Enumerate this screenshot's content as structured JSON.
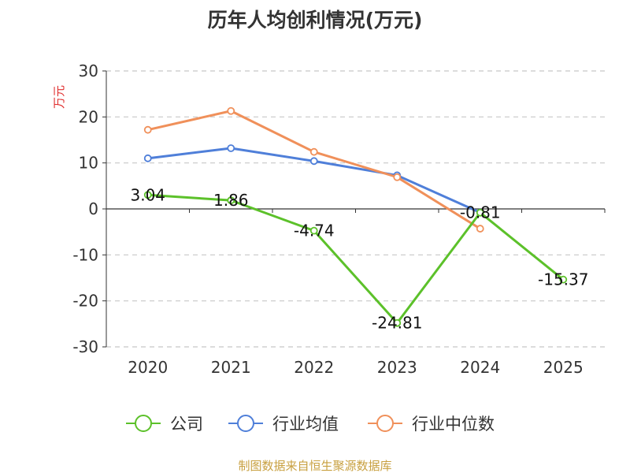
{
  "chart_data": {
    "type": "line",
    "title": "历年人均创利情况(万元)",
    "ylabel": "万元",
    "x": [
      "2020",
      "2021",
      "2022",
      "2023",
      "2024",
      "2025"
    ],
    "yticks": [
      "30",
      "20",
      "10",
      "0",
      "-10",
      "-20",
      "-30"
    ],
    "ylim": [
      -30,
      30
    ],
    "grid": true,
    "legend_position": "bottom",
    "series": [
      {
        "name": "公司",
        "color": "#5cc12a",
        "values": [
          3.04,
          1.86,
          -4.74,
          -24.81,
          -0.81,
          -15.37
        ],
        "labels": [
          "3.04",
          "1.86",
          "-4.74",
          "-24.81",
          "-0.81",
          "-15.37"
        ]
      },
      {
        "name": "行业均值",
        "color": "#4f7fd9",
        "values": [
          11.0,
          13.2,
          10.4,
          7.3,
          -0.8,
          null
        ]
      },
      {
        "name": "行业中位数",
        "color": "#f0905a",
        "values": [
          17.2,
          21.3,
          12.4,
          6.9,
          -4.3,
          null
        ]
      }
    ]
  },
  "footer": "制图数据来自恒生聚源数据库",
  "colors": {
    "ylabel": "#e03030",
    "footer": "#c8a040",
    "axis": "#333333",
    "grid": "#c8c8c8"
  }
}
